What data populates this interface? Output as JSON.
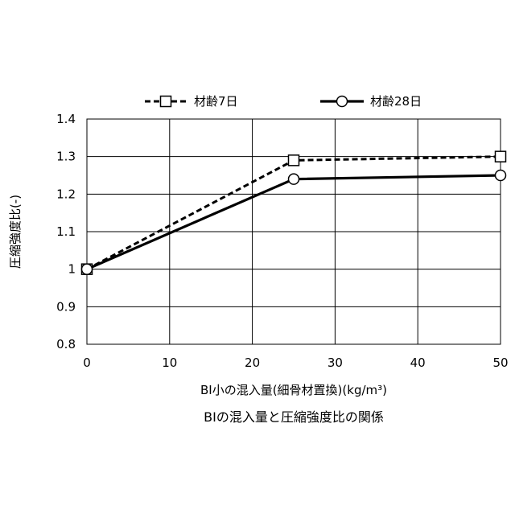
{
  "chart_data": {
    "type": "line",
    "title": "BIの混入量と圧縮強度比の関係",
    "xlabel": "BI小の混入量(細骨材置換)(kg/m³)",
    "ylabel": "圧縮強度比(-)",
    "xlim": [
      0,
      50
    ],
    "ylim": [
      0.8,
      1.4
    ],
    "x_ticks": [
      "0",
      "10",
      "20",
      "30",
      "40",
      "50"
    ],
    "y_ticks": [
      "0.8",
      "0.9",
      "1",
      "1.1",
      "1.2",
      "1.3",
      "1.4"
    ],
    "x_tick_values": [
      0,
      10,
      20,
      30,
      40,
      50
    ],
    "y_tick_values": [
      0.8,
      0.9,
      1.0,
      1.1,
      1.2,
      1.3,
      1.4
    ],
    "grid": true,
    "legend_position": "top",
    "series": [
      {
        "name": "材齢7日",
        "x": [
          0,
          25,
          50
        ],
        "values": [
          1.0,
          1.29,
          1.3
        ],
        "line_style": "dashed",
        "marker": "square",
        "color": "#000000"
      },
      {
        "name": "材齢28日",
        "x": [
          0,
          25,
          50
        ],
        "values": [
          1.0,
          1.24,
          1.25
        ],
        "line_style": "solid",
        "marker": "circle",
        "color": "#000000"
      }
    ]
  }
}
